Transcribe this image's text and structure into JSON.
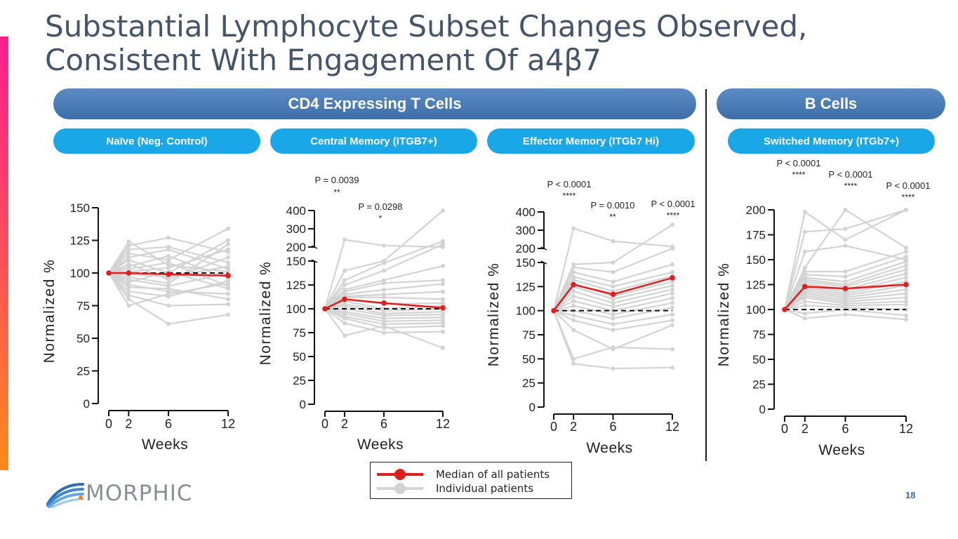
{
  "slide": {
    "title_line1": "Substantial Lymphocyte Subset Changes Observed,",
    "title_line2": "Consistent With Engagement Of a4β7",
    "page_number": "18"
  },
  "groups": {
    "cd4": "CD4 Expressing T Cells",
    "bcells": "B Cells"
  },
  "panels": {
    "naive": "Naïve (Neg. Control)",
    "central": "Central Memory (ITGB7+)",
    "effector": "Effector Memory (ITGb7 Hi)",
    "switched": "Switched Memory (ITGb7+)"
  },
  "legend": {
    "median": "Median of all patients",
    "individual": "Individual patients"
  },
  "logo": {
    "text": "MORPHIC"
  },
  "colors": {
    "median": "#e01e1e",
    "individual": "#d3d3d3",
    "title": "#44546a",
    "group_pill": "#4a7bb7",
    "sub_pill": "#1aa7e8"
  },
  "chart_data": [
    {
      "type": "line",
      "panel": "Naïve (Neg. Control)",
      "xlabel": "Weeks",
      "ylabel": "Normalized %",
      "x": [
        0,
        2,
        6,
        12
      ],
      "xticks": [
        "0",
        "2",
        "6",
        "12"
      ],
      "yticks": [
        "0",
        "25",
        "50",
        "75",
        "100",
        "125",
        "150"
      ],
      "ylim": [
        0,
        150
      ],
      "reference_line": 100,
      "series": [
        {
          "name": "Median of all patients",
          "values": [
            100,
            100,
            99,
            98
          ]
        },
        {
          "name": "Individual patients",
          "values": [
            100,
            124,
            106,
            101
          ]
        },
        {
          "name": "Individual patients",
          "values": [
            100,
            121,
            127,
            116
          ]
        },
        {
          "name": "Individual patients",
          "values": [
            100,
            118,
            120,
            108
          ]
        },
        {
          "name": "Individual patients",
          "values": [
            100,
            115,
            110,
            134
          ]
        },
        {
          "name": "Individual patients",
          "values": [
            100,
            112,
            118,
            103
          ]
        },
        {
          "name": "Individual patients",
          "values": [
            100,
            110,
            100,
            125
          ]
        },
        {
          "name": "Individual patients",
          "values": [
            100,
            107,
            95,
            112
          ]
        },
        {
          "name": "Individual patients",
          "values": [
            100,
            105,
            113,
            96
          ]
        },
        {
          "name": "Individual patients",
          "values": [
            100,
            103,
            108,
            90
          ]
        },
        {
          "name": "Individual patients",
          "values": [
            100,
            101,
            104,
            118
          ]
        },
        {
          "name": "Individual patients",
          "values": [
            100,
            99,
            97,
            105
          ]
        },
        {
          "name": "Individual patients",
          "values": [
            100,
            97,
            92,
            122
          ]
        },
        {
          "name": "Individual patients",
          "values": [
            100,
            95,
            90,
            100
          ]
        },
        {
          "name": "Individual patients",
          "values": [
            100,
            93,
            101,
            88
          ]
        },
        {
          "name": "Individual patients",
          "values": [
            100,
            91,
            86,
            84
          ]
        },
        {
          "name": "Individual patients",
          "values": [
            100,
            89,
            88,
            80
          ]
        },
        {
          "name": "Individual patients",
          "values": [
            100,
            86,
            82,
            94
          ]
        },
        {
          "name": "Individual patients",
          "values": [
            100,
            83,
            75,
            76
          ]
        },
        {
          "name": "Individual patients",
          "values": [
            100,
            80,
            61,
            68
          ]
        },
        {
          "name": "Individual patients",
          "values": [
            100,
            75,
            84,
            92
          ]
        }
      ]
    },
    {
      "type": "line",
      "panel": "Central Memory (ITGB7+)",
      "xlabel": "Weeks",
      "ylabel": "Normalized %",
      "x": [
        0,
        2,
        6,
        12
      ],
      "xticks": [
        "0",
        "2",
        "6",
        "12"
      ],
      "yticks": [
        "0",
        "25",
        "50",
        "75",
        "100",
        "125",
        "150",
        "200",
        "300",
        "400"
      ],
      "ylim": [
        0,
        400
      ],
      "axis_break": [
        150,
        200
      ],
      "reference_line": 100,
      "annotations": [
        {
          "text": "P = 0.0039",
          "stars": "**"
        },
        {
          "text": "P = 0.0298",
          "stars": "*"
        }
      ],
      "series": [
        {
          "name": "Median of all patients",
          "values": [
            100,
            110,
            106,
            101
          ]
        },
        {
          "name": "Individual patients",
          "values": [
            100,
            240,
            208,
            200
          ]
        },
        {
          "name": "Individual patients",
          "values": [
            100,
            140,
            150,
            400
          ]
        },
        {
          "name": "Individual patients",
          "values": [
            100,
            130,
            148,
            232
          ]
        },
        {
          "name": "Individual patients",
          "values": [
            100,
            125,
            140,
            215
          ]
        },
        {
          "name": "Individual patients",
          "values": [
            100,
            120,
            130,
            145
          ]
        },
        {
          "name": "Individual patients",
          "values": [
            100,
            118,
            127,
            130
          ]
        },
        {
          "name": "Individual patients",
          "values": [
            100,
            115,
            120,
            126
          ]
        },
        {
          "name": "Individual patients",
          "values": [
            100,
            113,
            115,
            118
          ]
        },
        {
          "name": "Individual patients",
          "values": [
            100,
            112,
            112,
            110
          ]
        },
        {
          "name": "Individual patients",
          "values": [
            100,
            110,
            105,
            106
          ]
        },
        {
          "name": "Individual patients",
          "values": [
            100,
            108,
            100,
            103
          ]
        },
        {
          "name": "Individual patients",
          "values": [
            100,
            105,
            98,
            100
          ]
        },
        {
          "name": "Individual patients",
          "values": [
            100,
            103,
            95,
            97
          ]
        },
        {
          "name": "Individual patients",
          "values": [
            100,
            100,
            93,
            94
          ]
        },
        {
          "name": "Individual patients",
          "values": [
            100,
            97,
            90,
            91
          ]
        },
        {
          "name": "Individual patients",
          "values": [
            100,
            95,
            87,
            88
          ]
        },
        {
          "name": "Individual patients",
          "values": [
            100,
            92,
            84,
            85
          ]
        },
        {
          "name": "Individual patients",
          "values": [
            100,
            90,
            80,
            82
          ]
        },
        {
          "name": "Individual patients",
          "values": [
            100,
            85,
            75,
            76
          ]
        },
        {
          "name": "Individual patients",
          "values": [
            100,
            72,
            82,
            59
          ]
        }
      ]
    },
    {
      "type": "line",
      "panel": "Effector Memory (ITGb7 Hi)",
      "xlabel": "Weeks",
      "ylabel": "Normalized %",
      "x": [
        0,
        2,
        6,
        12
      ],
      "xticks": [
        "0",
        "2",
        "6",
        "12"
      ],
      "yticks": [
        "0",
        "25",
        "50",
        "75",
        "100",
        "125",
        "150",
        "200",
        "300",
        "400"
      ],
      "ylim": [
        0,
        400
      ],
      "axis_break": [
        150,
        200
      ],
      "reference_line": 100,
      "annotations": [
        {
          "text": "P < 0.0001",
          "stars": "****"
        },
        {
          "text": "P = 0.0010",
          "stars": "**"
        },
        {
          "text": "P < 0.0001",
          "stars": "****"
        }
      ],
      "series": [
        {
          "name": "Median of all patients",
          "values": [
            100,
            127,
            117,
            134
          ]
        },
        {
          "name": "Individual patients",
          "values": [
            100,
            310,
            240,
            210
          ]
        },
        {
          "name": "Individual patients",
          "values": [
            100,
            148,
            150,
            330
          ]
        },
        {
          "name": "Individual patients",
          "values": [
            100,
            145,
            140,
            200
          ]
        },
        {
          "name": "Individual patients",
          "values": [
            100,
            140,
            130,
            148
          ]
        },
        {
          "name": "Individual patients",
          "values": [
            100,
            135,
            125,
            140
          ]
        },
        {
          "name": "Individual patients",
          "values": [
            100,
            132,
            120,
            136
          ]
        },
        {
          "name": "Individual patients",
          "values": [
            100,
            128,
            115,
            130
          ]
        },
        {
          "name": "Individual patients",
          "values": [
            100,
            125,
            112,
            126
          ]
        },
        {
          "name": "Individual patients",
          "values": [
            100,
            120,
            108,
            122
          ]
        },
        {
          "name": "Individual patients",
          "values": [
            100,
            115,
            104,
            118
          ]
        },
        {
          "name": "Individual patients",
          "values": [
            100,
            110,
            100,
            113
          ]
        },
        {
          "name": "Individual patients",
          "values": [
            100,
            105,
            96,
            108
          ]
        },
        {
          "name": "Individual patients",
          "values": [
            100,
            100,
            92,
            103
          ]
        },
        {
          "name": "Individual patients",
          "values": [
            100,
            95,
            86,
            96
          ]
        },
        {
          "name": "Individual patients",
          "values": [
            100,
            90,
            80,
            90
          ]
        },
        {
          "name": "Individual patients",
          "values": [
            100,
            80,
            60,
            85
          ]
        },
        {
          "name": "Individual patients",
          "values": [
            100,
            50,
            62,
            60
          ]
        },
        {
          "name": "Individual patients",
          "values": [
            100,
            45,
            40,
            41
          ]
        }
      ]
    },
    {
      "type": "line",
      "panel": "Switched Memory (ITGb7+)",
      "xlabel": "Weeks",
      "ylabel": "Normalized %",
      "x": [
        0,
        2,
        6,
        12
      ],
      "xticks": [
        "0",
        "2",
        "6",
        "12"
      ],
      "yticks": [
        "0",
        "25",
        "50",
        "75",
        "100",
        "125",
        "150",
        "175",
        "200"
      ],
      "ylim": [
        0,
        200
      ],
      "reference_line": 100,
      "annotations": [
        {
          "text": "P < 0.0001",
          "stars": "****"
        },
        {
          "text": "P < 0.0001",
          "stars": "****"
        },
        {
          "text": "P < 0.0001",
          "stars": "****"
        }
      ],
      "series": [
        {
          "name": "Median of all patients",
          "values": [
            100,
            123,
            121,
            125
          ]
        },
        {
          "name": "Individual patients",
          "values": [
            100,
            198,
            170,
            200
          ]
        },
        {
          "name": "Individual patients",
          "values": [
            100,
            178,
            181,
            200
          ]
        },
        {
          "name": "Individual patients",
          "values": [
            100,
            158,
            164,
            150
          ]
        },
        {
          "name": "Individual patients",
          "values": [
            100,
            142,
            200,
            162
          ]
        },
        {
          "name": "Individual patients",
          "values": [
            100,
            138,
            138,
            158
          ]
        },
        {
          "name": "Individual patients",
          "values": [
            100,
            135,
            133,
            153
          ]
        },
        {
          "name": "Individual patients",
          "values": [
            100,
            132,
            128,
            148
          ]
        },
        {
          "name": "Individual patients",
          "values": [
            100,
            130,
            125,
            144
          ]
        },
        {
          "name": "Individual patients",
          "values": [
            100,
            128,
            123,
            140
          ]
        },
        {
          "name": "Individual patients",
          "values": [
            100,
            126,
            120,
            136
          ]
        },
        {
          "name": "Individual patients",
          "values": [
            100,
            124,
            118,
            132
          ]
        },
        {
          "name": "Individual patients",
          "values": [
            100,
            122,
            116,
            128
          ]
        },
        {
          "name": "Individual patients",
          "values": [
            100,
            120,
            114,
            124
          ]
        },
        {
          "name": "Individual patients",
          "values": [
            100,
            118,
            112,
            120
          ]
        },
        {
          "name": "Individual patients",
          "values": [
            100,
            116,
            110,
            116
          ]
        },
        {
          "name": "Individual patients",
          "values": [
            100,
            114,
            108,
            112
          ]
        },
        {
          "name": "Individual patients",
          "values": [
            100,
            112,
            106,
            108
          ]
        },
        {
          "name": "Individual patients",
          "values": [
            100,
            108,
            104,
            105
          ]
        },
        {
          "name": "Individual patients",
          "values": [
            100,
            104,
            102,
            100
          ]
        },
        {
          "name": "Individual patients",
          "values": [
            100,
            96,
            100,
            94
          ]
        },
        {
          "name": "Individual patients",
          "values": [
            100,
            91,
            95,
            90
          ]
        }
      ]
    }
  ]
}
